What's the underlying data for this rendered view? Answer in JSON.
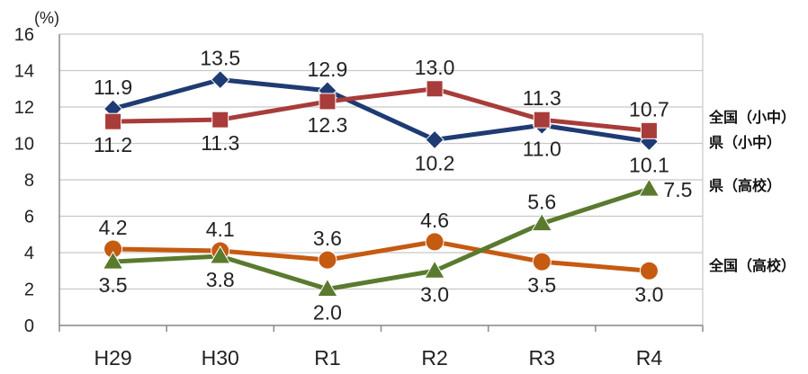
{
  "chart_data": {
    "type": "line",
    "unit_label": "(%)",
    "categories": [
      "H29",
      "H30",
      "R1",
      "R2",
      "R3",
      "R4"
    ],
    "ylim": [
      0,
      16
    ],
    "yticks": [
      "0",
      "2",
      "4",
      "6",
      "8",
      "10",
      "12",
      "14",
      "16"
    ],
    "grid": true,
    "legend_position": "right, labels at line ends",
    "series": [
      {
        "name": "県（小中）",
        "color": "#1f3b73",
        "marker": "diamond",
        "values": [
          11.9,
          13.5,
          12.9,
          10.2,
          11.0,
          10.1
        ],
        "labels": [
          "11.9",
          "13.5",
          "12.9",
          "10.2",
          "11.0",
          "10.1"
        ]
      },
      {
        "name": "全国（小中）",
        "color": "#a83c3a",
        "marker": "square",
        "values": [
          11.2,
          11.3,
          12.3,
          13.0,
          11.3,
          10.7
        ],
        "labels": [
          "11.2",
          "11.3",
          "12.3",
          "13.0",
          "11.3",
          "10.7"
        ]
      },
      {
        "name": "全国（高校）",
        "color": "#c55a11",
        "marker": "circle",
        "values": [
          4.2,
          4.1,
          3.6,
          4.6,
          3.5,
          3.0
        ],
        "labels": [
          "4.2",
          "4.1",
          "3.6",
          "4.6",
          "3.5",
          "3.0"
        ]
      },
      {
        "name": "県（高校）",
        "color": "#5a7a2e",
        "marker": "triangle",
        "values": [
          3.5,
          3.8,
          2.0,
          3.0,
          5.6,
          7.5
        ],
        "labels": [
          "3.5",
          "3.8",
          "2.0",
          "3.0",
          "5.6",
          "7.5"
        ]
      }
    ]
  }
}
